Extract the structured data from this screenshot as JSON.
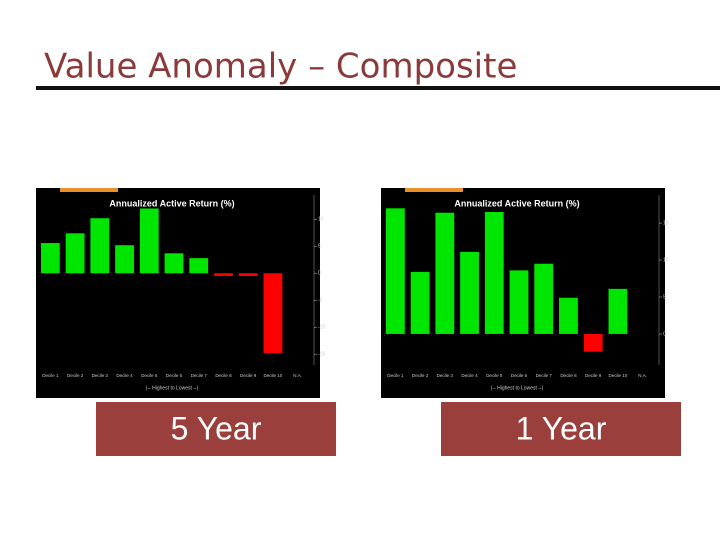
{
  "slide_title": "Value Anomaly – Composite",
  "chart_data": [
    {
      "type": "bar",
      "title": "Annualized Active Return (%)",
      "caption": "5 Year",
      "x_label": "(-- Highest to Lowest --)",
      "categories": [
        "Decile 1",
        "Decile 2",
        "Decile 3",
        "Decile 4",
        "Decile 5",
        "Decile 6",
        "Decile 7",
        "Decile 8",
        "Decile 9",
        "Decile 10",
        "N.A."
      ],
      "values": [
        5.6,
        7.4,
        10.2,
        5.2,
        12.0,
        3.7,
        2.8,
        -0.5,
        -0.5,
        -14.8,
        null
      ],
      "color": "#00e600",
      "negative_color": "#ff0000",
      "ylim": [
        -17,
        14.5
      ],
      "yticks": [
        -15,
        -10,
        -5,
        0,
        5,
        10
      ]
    },
    {
      "type": "bar",
      "title": "Annualized Active Return (%)",
      "caption": "1 Year",
      "x_label": "(-- Highest to Lowest --)",
      "categories": [
        "Decile 1",
        "Decile 2",
        "Decile 3",
        "Decile 4",
        "Decile 5",
        "Decile 6",
        "Decile 7",
        "Decile 8",
        "Decile 9",
        "Decile 10",
        "N.A."
      ],
      "values": [
        17.0,
        8.4,
        16.4,
        11.1,
        16.5,
        8.6,
        9.5,
        4.9,
        -2.4,
        6.1,
        null
      ],
      "color": "#00e600",
      "negative_color": "#ff0000",
      "ylim": [
        -4.2,
        18.8
      ],
      "yticks": [
        0,
        5,
        10,
        15
      ]
    }
  ]
}
